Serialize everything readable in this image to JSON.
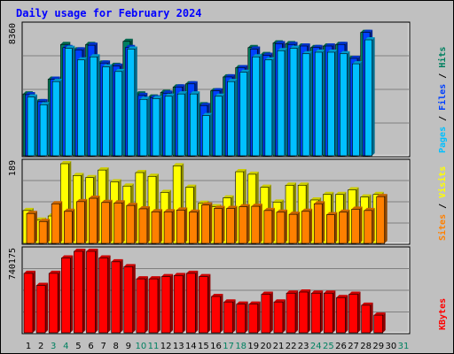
{
  "chart_data": [
    {
      "type": "bar",
      "title": "Daily usage for February 2024",
      "ylabel_parts": [
        {
          "text": "Pages",
          "color": "#00c0ff"
        },
        {
          "text": "Files",
          "color": "#0040ff"
        },
        {
          "text": "Hits",
          "color": "#008060"
        }
      ],
      "separator": " / ",
      "ymax_label": "8360",
      "ylim": [
        0,
        8360
      ],
      "grid": true,
      "categories": [
        "1",
        "2",
        "3",
        "4",
        "5",
        "6",
        "7",
        "8",
        "9",
        "10",
        "11",
        "12",
        "13",
        "14",
        "15",
        "16",
        "17",
        "18",
        "19",
        "20",
        "21",
        "22",
        "23",
        "24",
        "25",
        "26",
        "27",
        "28",
        "29",
        "30",
        "31"
      ],
      "weekend_days": [
        "3",
        "4",
        "10",
        "11",
        "17",
        "18",
        "24",
        "25",
        "31"
      ],
      "series": [
        {
          "name": "Hits",
          "color": "#008060",
          "values": [
            4000,
            3500,
            4950,
            7200,
            6850,
            7200,
            6000,
            5850,
            7400,
            4000,
            3800,
            4100,
            4450,
            4650,
            3300,
            4200,
            5100,
            5700,
            7000,
            6550,
            7300,
            7250,
            7100,
            7000,
            7100,
            7200,
            6300,
            7980,
            null,
            null,
            null
          ]
        },
        {
          "name": "Files",
          "color": "#0040ff",
          "values": [
            3950,
            3500,
            4950,
            7000,
            6850,
            7150,
            6000,
            5800,
            7000,
            3900,
            3750,
            4050,
            4450,
            4650,
            3250,
            4200,
            5100,
            5700,
            6900,
            6500,
            7250,
            7200,
            7100,
            7000,
            7100,
            7200,
            6300,
            7980,
            null,
            null,
            null
          ]
        },
        {
          "name": "Pages",
          "color": "#00c0ff",
          "values": [
            3800,
            3300,
            4800,
            6950,
            6200,
            6400,
            5750,
            5450,
            6900,
            3650,
            3700,
            3850,
            4000,
            4000,
            2600,
            3850,
            4800,
            5400,
            6400,
            6200,
            6800,
            6950,
            6600,
            6700,
            6700,
            6600,
            5950,
            7500,
            null,
            null,
            null
          ]
        }
      ]
    },
    {
      "type": "bar",
      "ylabel_parts": [
        {
          "text": "Sites",
          "color": "#ff8000"
        },
        {
          "text": "Visits",
          "color": "#ffff00"
        }
      ],
      "separator": " / ",
      "ymax_label": "189",
      "ylim": [
        0,
        189
      ],
      "grid": true,
      "series": [
        {
          "name": "Visits",
          "color": "#ffff00",
          "values": [
            78,
            55,
            65,
            189,
            161,
            156,
            174,
            146,
            136,
            168,
            159,
            121,
            184,
            133,
            95,
            87,
            108,
            170,
            164,
            133,
            98,
            138,
            138,
            103,
            116,
            116,
            127,
            110,
            116,
            null,
            null
          ]
        },
        {
          "name": "Sites",
          "color": "#ff8000",
          "values": [
            71,
            52,
            94,
            76,
            99,
            107,
            97,
            96,
            90,
            82,
            75,
            75,
            79,
            74,
            91,
            83,
            83,
            87,
            88,
            78,
            74,
            69,
            76,
            94,
            68,
            74,
            81,
            78,
            111,
            null,
            null
          ]
        }
      ]
    },
    {
      "type": "bar",
      "ylabel_parts": [
        {
          "text": "KBytes",
          "color": "#ff0000"
        }
      ],
      "separator": "",
      "ymax_label": "740175",
      "ylim": [
        0,
        740175
      ],
      "grid": true,
      "series": [
        {
          "name": "KBytes",
          "color": "#ff0000",
          "values": [
            540000,
            430000,
            540000,
            680000,
            740175,
            740175,
            680000,
            645000,
            600000,
            490000,
            490000,
            510000,
            520000,
            540000,
            510000,
            330000,
            280000,
            260000,
            260000,
            350000,
            280000,
            360000,
            370000,
            360000,
            360000,
            320000,
            350000,
            250000,
            160000,
            null,
            null
          ]
        }
      ]
    }
  ]
}
